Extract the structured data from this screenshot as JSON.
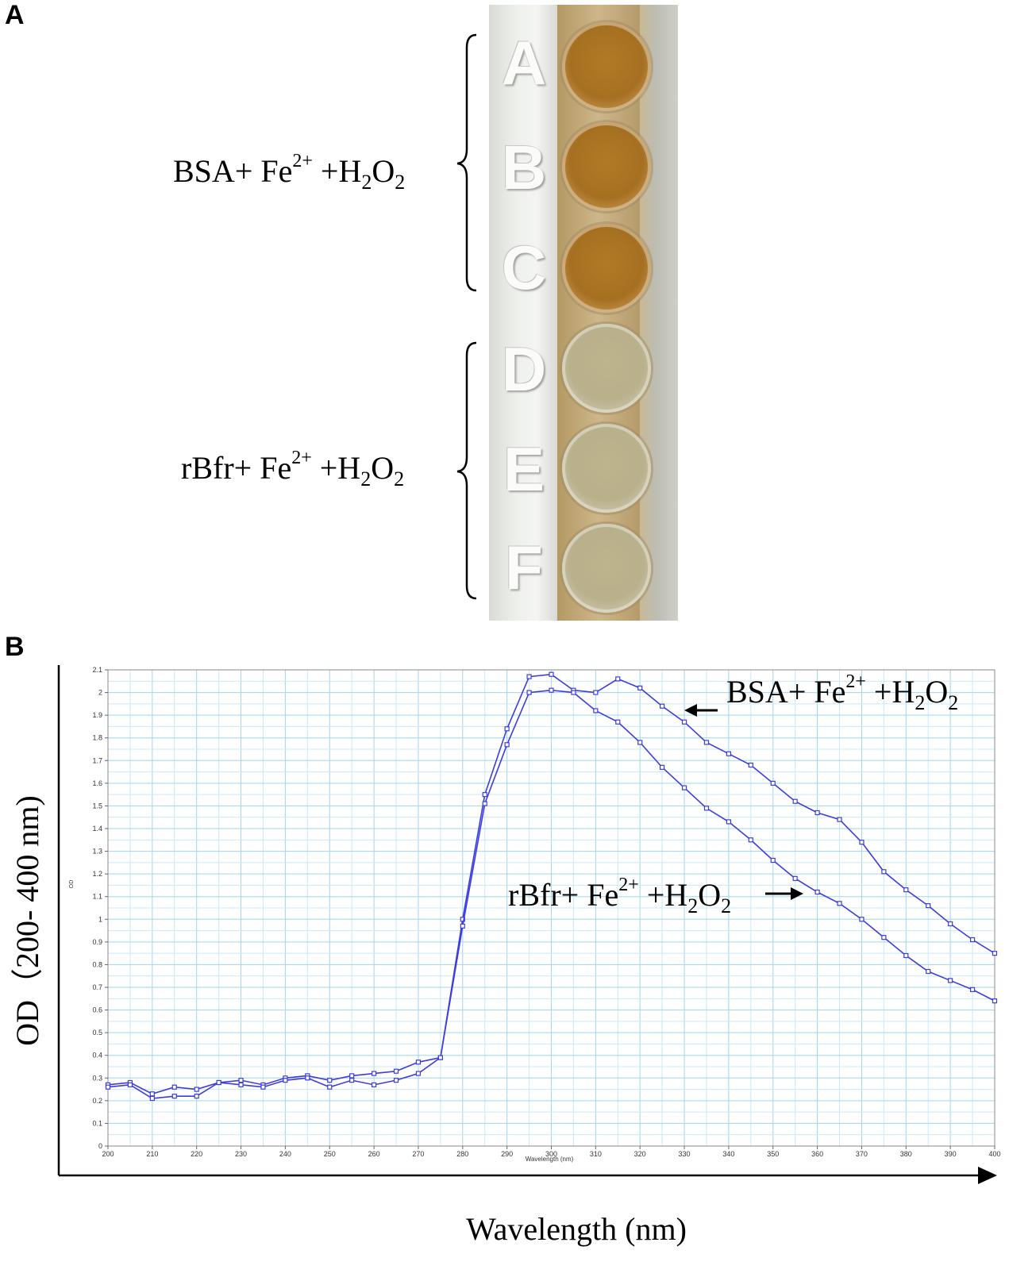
{
  "panel_a": {
    "letter": "A",
    "row_letters": [
      "A",
      "B",
      "C",
      "D",
      "E",
      "F"
    ],
    "groups": [
      {
        "prefix": "BSA+ Fe",
        "sup": "2+",
        "mid": " +H",
        "sub1": "2",
        "o": "O",
        "sub2": "2"
      },
      {
        "prefix": "rBfr+ Fe",
        "sup": "2+",
        "mid": " +H",
        "sub1": "2",
        "o": "O",
        "sub2": "2"
      }
    ]
  },
  "panel_b": {
    "letter": "B",
    "inner_ylabel": "OD",
    "inner_xlabel": "Wavelength (nm)",
    "outer_ylabel": "OD（200- 400 nm)",
    "outer_xlabel": "Wavelength (nm)"
  },
  "chart_data": {
    "type": "line",
    "xlim": [
      200,
      400
    ],
    "ylim": [
      0,
      2.1
    ],
    "xticks": [
      "200",
      "210",
      "220",
      "230",
      "240",
      "250",
      "260",
      "270",
      "280",
      "290",
      "300",
      "310",
      "320",
      "330",
      "340",
      "350",
      "360",
      "370",
      "380",
      "390",
      "400"
    ],
    "yticks": [
      "0",
      "0.1",
      "0.2",
      "0.3",
      "0.4",
      "0.5",
      "0.6",
      "0.7",
      "0.8",
      "0.9",
      "1",
      "1.1",
      "1.2",
      "1.3",
      "1.4",
      "1.5",
      "1.6",
      "1.7",
      "1.8",
      "1.9",
      "2",
      "2.1"
    ],
    "grid": true,
    "line_color": "#3c3ce0",
    "x": [
      200,
      205,
      210,
      215,
      220,
      225,
      230,
      235,
      240,
      245,
      250,
      255,
      260,
      265,
      270,
      275,
      280,
      285,
      290,
      295,
      300,
      305,
      310,
      315,
      320,
      325,
      330,
      335,
      340,
      345,
      350,
      355,
      360,
      365,
      370,
      375,
      380,
      385,
      390,
      395,
      400
    ],
    "series": [
      {
        "annotation": "BSA",
        "values": [
          0.27,
          0.28,
          0.23,
          0.26,
          0.25,
          0.28,
          0.29,
          0.27,
          0.3,
          0.31,
          0.29,
          0.31,
          0.32,
          0.33,
          0.37,
          0.39,
          1.0,
          1.55,
          1.84,
          2.07,
          2.08,
          2.01,
          2.0,
          2.06,
          2.02,
          1.94,
          1.87,
          1.78,
          1.73,
          1.68,
          1.6,
          1.52,
          1.47,
          1.44,
          1.34,
          1.21,
          1.13,
          1.06,
          0.98,
          0.91,
          0.85
        ]
      },
      {
        "annotation": "rBfr",
        "values": [
          0.26,
          0.27,
          0.21,
          0.22,
          0.22,
          0.28,
          0.27,
          0.26,
          0.29,
          0.3,
          0.26,
          0.29,
          0.27,
          0.29,
          0.32,
          0.39,
          0.97,
          1.51,
          1.77,
          2.0,
          2.01,
          2.0,
          1.92,
          1.87,
          1.78,
          1.67,
          1.58,
          1.49,
          1.43,
          1.35,
          1.26,
          1.18,
          1.12,
          1.07,
          1.0,
          0.92,
          0.84,
          0.77,
          0.73,
          0.69,
          0.64
        ]
      }
    ]
  }
}
